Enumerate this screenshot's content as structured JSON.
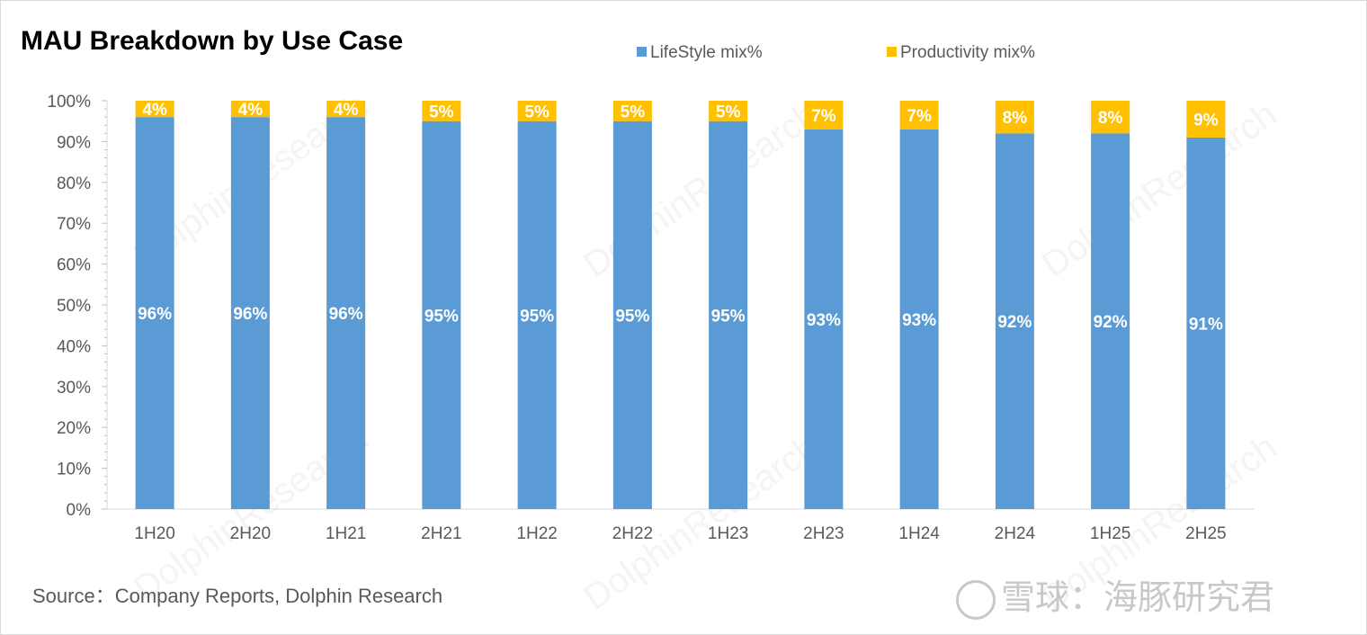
{
  "title": "MAU Breakdown by Use Case",
  "source": "Source：Company Reports, Dolphin Research",
  "watermark": "DolphinResearch",
  "brand": "雪球：海豚研究君",
  "chart_data": {
    "type": "bar",
    "stacked": true,
    "title": "MAU Breakdown by Use Case",
    "categories": [
      "1H20",
      "2H20",
      "1H21",
      "2H21",
      "1H22",
      "2H22",
      "1H23",
      "2H23",
      "1H24",
      "2H24",
      "1H25",
      "2H25"
    ],
    "series": [
      {
        "name": "LifeStyle mix%",
        "color": "#5B9BD5",
        "values": [
          96,
          96,
          96,
          95,
          95,
          95,
          95,
          93,
          93,
          92,
          92,
          91
        ]
      },
      {
        "name": "Productivity mix%",
        "color": "#FFC000",
        "values": [
          4,
          4,
          4,
          5,
          5,
          5,
          5,
          7,
          7,
          8,
          8,
          9
        ]
      }
    ],
    "ylim": [
      0,
      100
    ],
    "yticks": [
      "0%",
      "10%",
      "20%",
      "30%",
      "40%",
      "50%",
      "60%",
      "70%",
      "80%",
      "90%",
      "100%"
    ],
    "legend_position": "top",
    "grid": false,
    "label_suffix": "%"
  }
}
